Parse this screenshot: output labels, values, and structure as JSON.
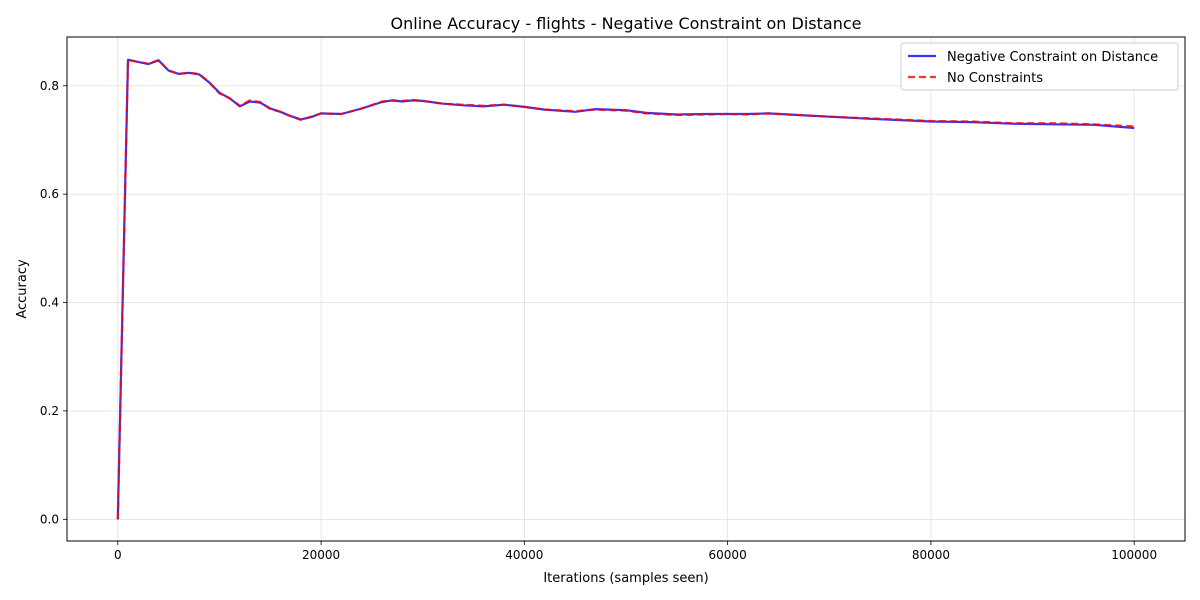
{
  "chart_data": {
    "type": "line",
    "title": "Online Accuracy - flights - Negative Constraint on Distance",
    "xlabel": "Iterations (samples seen)",
    "ylabel": "Accuracy",
    "xlim": [
      -5000,
      105000
    ],
    "ylim": [
      -0.04,
      0.89
    ],
    "xticks": [
      0,
      20000,
      40000,
      60000,
      80000,
      100000
    ],
    "yticks": [
      0.0,
      0.2,
      0.4,
      0.6,
      0.8
    ],
    "grid": true,
    "legend_position": "top-right",
    "x": [
      0,
      1000,
      2000,
      3000,
      4000,
      5000,
      6000,
      7000,
      8000,
      9000,
      10000,
      11000,
      12000,
      13000,
      14000,
      15000,
      16000,
      17000,
      18000,
      19000,
      20000,
      22000,
      24000,
      26000,
      27000,
      28000,
      29000,
      30000,
      32000,
      34000,
      36000,
      38000,
      40000,
      42000,
      45000,
      47000,
      50000,
      52000,
      55000,
      58000,
      60000,
      62000,
      64000,
      66000,
      70000,
      74000,
      80000,
      84000,
      88000,
      92000,
      96000,
      100000
    ],
    "series": [
      {
        "name": "Negative Constraint on Distance",
        "color": "#0000ff",
        "style": "solid",
        "values": [
          0.0,
          0.848,
          0.844,
          0.84,
          0.847,
          0.828,
          0.822,
          0.824,
          0.821,
          0.806,
          0.787,
          0.777,
          0.762,
          0.771,
          0.769,
          0.758,
          0.752,
          0.744,
          0.738,
          0.742,
          0.749,
          0.748,
          0.758,
          0.77,
          0.773,
          0.771,
          0.773,
          0.772,
          0.767,
          0.764,
          0.762,
          0.765,
          0.761,
          0.756,
          0.752,
          0.757,
          0.755,
          0.75,
          0.747,
          0.748,
          0.748,
          0.748,
          0.749,
          0.747,
          0.743,
          0.739,
          0.734,
          0.733,
          0.73,
          0.729,
          0.728,
          0.722
        ]
      },
      {
        "name": "No Constraints",
        "color": "#ff0000",
        "style": "dashed",
        "values": [
          0.0,
          0.848,
          0.844,
          0.841,
          0.847,
          0.828,
          0.822,
          0.824,
          0.822,
          0.806,
          0.786,
          0.777,
          0.763,
          0.773,
          0.77,
          0.757,
          0.752,
          0.744,
          0.737,
          0.743,
          0.749,
          0.748,
          0.758,
          0.771,
          0.773,
          0.772,
          0.774,
          0.772,
          0.767,
          0.765,
          0.763,
          0.765,
          0.761,
          0.756,
          0.753,
          0.756,
          0.754,
          0.749,
          0.746,
          0.747,
          0.748,
          0.747,
          0.749,
          0.747,
          0.743,
          0.74,
          0.735,
          0.734,
          0.731,
          0.731,
          0.729,
          0.725
        ]
      }
    ]
  }
}
